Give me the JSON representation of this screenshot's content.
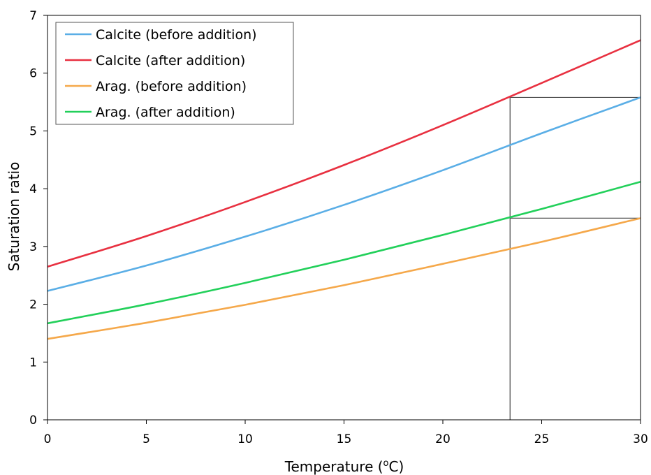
{
  "chart_data": {
    "type": "line",
    "xlabel": "Temperature (",
    "xlabel_superscript": "o",
    "xlabel_unit": "C)",
    "ylabel": "Saturation ratio",
    "xlim": [
      0,
      30
    ],
    "ylim": [
      0,
      7
    ],
    "x_ticks": [
      "0",
      "5",
      "10",
      "15",
      "20",
      "25",
      "30"
    ],
    "y_ticks": [
      "0",
      "1",
      "2",
      "3",
      "4",
      "5",
      "6",
      "7"
    ],
    "grid": false,
    "legend_position": "top-left",
    "series": [
      {
        "name": "Calcite (before addition)",
        "color": "#5aaee6",
        "x": [
          0,
          5,
          10,
          15,
          20,
          25,
          30
        ],
        "y": [
          2.23,
          2.67,
          3.17,
          3.72,
          4.32,
          4.96,
          5.58
        ]
      },
      {
        "name": "Calcite (after addition)",
        "color": "#e83040",
        "x": [
          0,
          5,
          10,
          15,
          20,
          25,
          30
        ],
        "y": [
          2.65,
          3.18,
          3.77,
          4.41,
          5.1,
          5.83,
          6.57
        ]
      },
      {
        "name": "Arag. (before addition)",
        "color": "#f5a84a",
        "x": [
          0,
          5,
          10,
          15,
          20,
          25,
          30
        ],
        "y": [
          1.4,
          1.68,
          1.99,
          2.33,
          2.7,
          3.08,
          3.49
        ]
      },
      {
        "name": "Arag. (after addition)",
        "color": "#22d05a",
        "x": [
          0,
          5,
          10,
          15,
          20,
          25,
          30
        ],
        "y": [
          1.67,
          2.0,
          2.37,
          2.77,
          3.2,
          3.65,
          4.12
        ]
      }
    ],
    "reference_lines": [
      {
        "type": "vertical",
        "x": 23.4,
        "y_from": 0,
        "y_to": 5.58
      },
      {
        "type": "horizontal",
        "y": 5.58,
        "x_from": 23.4,
        "x_to": 30
      },
      {
        "type": "horizontal",
        "y": 3.49,
        "x_from": 23.4,
        "x_to": 30
      }
    ]
  }
}
